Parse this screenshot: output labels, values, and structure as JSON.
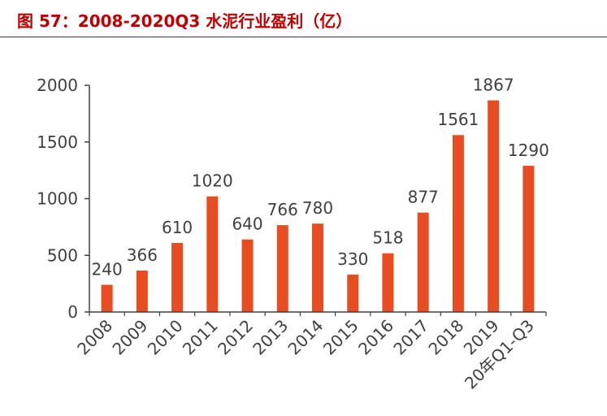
{
  "title": "图 57：2008-2020Q3 水泥行业盈利（亿）",
  "colors": {
    "bar": "#e84d22",
    "title": "#c00000",
    "axis": "#404040",
    "text": "#404040"
  },
  "chart_data": {
    "type": "bar",
    "title": "图 57：2008-2020Q3 水泥行业盈利（亿）",
    "categories": [
      "2008",
      "2009",
      "2010",
      "2011",
      "2012",
      "2013",
      "2014",
      "2015",
      "2016",
      "2017",
      "2018",
      "2019",
      "20年Q1-Q3"
    ],
    "values": [
      240,
      366,
      610,
      1020,
      640,
      766,
      780,
      330,
      518,
      877,
      1561,
      1867,
      1290
    ],
    "value_labels": [
      "240",
      "366",
      "610",
      "1020",
      "640",
      "766",
      "780",
      "330",
      "518",
      "877",
      "1561",
      "1867",
      "1290"
    ],
    "y_ticks": [
      0,
      500,
      1000,
      1500,
      2000
    ],
    "y_tick_labels": [
      "0",
      "500",
      "1000",
      "1500",
      "2000"
    ],
    "ylim": [
      0,
      2000
    ],
    "xlabel": "",
    "ylabel": "",
    "grid": false,
    "legend": "none"
  }
}
